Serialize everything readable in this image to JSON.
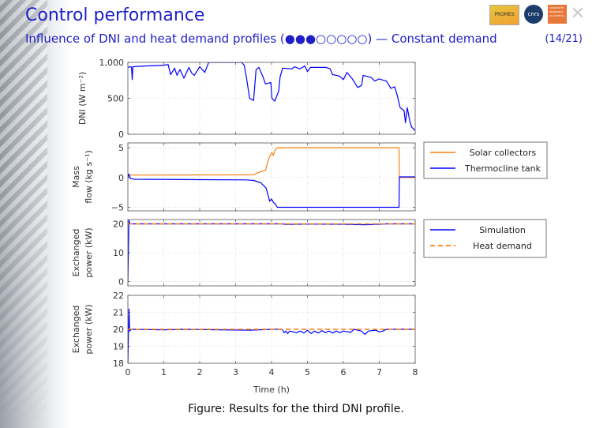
{
  "header": {
    "title": "Control performance",
    "subtitle": "Influence of DNI and heat demand profiles (●●●○○○○○) — Constant demand",
    "page": "(14/21)",
    "logos": [
      "PROMES",
      "cnrs",
      "UNIVERSITÉ PERPIGNAN VIA DOMITIA"
    ]
  },
  "caption": "Figure: Results for the third DNI profile.",
  "colors": {
    "blue": "#0000ff",
    "orange": "#ff7f0e",
    "grid": "#c8c8c8"
  },
  "chart_data": [
    {
      "type": "line",
      "ylabel": "DNI (W m⁻²)",
      "xlim": [
        0,
        8
      ],
      "ylim": [
        0,
        1000
      ],
      "yticks": [
        0,
        500,
        1000
      ],
      "ytick_labels": [
        "0",
        "500",
        "1,000"
      ],
      "grid": true,
      "series": [
        {
          "name": "DNI",
          "color": "blue",
          "dash": false,
          "points": [
            [
              0,
              930
            ],
            [
              0.05,
              940
            ],
            [
              0.1,
              935
            ],
            [
              0.12,
              760
            ],
            [
              0.14,
              940
            ],
            [
              0.5,
              950
            ],
            [
              1.0,
              960
            ],
            [
              1.12,
              970
            ],
            [
              1.19,
              830
            ],
            [
              1.3,
              920
            ],
            [
              1.37,
              820
            ],
            [
              1.45,
              900
            ],
            [
              1.56,
              780
            ],
            [
              1.7,
              930
            ],
            [
              1.78,
              850
            ],
            [
              1.85,
              820
            ],
            [
              2.0,
              940
            ],
            [
              2.14,
              860
            ],
            [
              2.25,
              1000
            ],
            [
              3.17,
              1000
            ],
            [
              3.24,
              960
            ],
            [
              3.3,
              800
            ],
            [
              3.39,
              500
            ],
            [
              3.5,
              470
            ],
            [
              3.57,
              900
            ],
            [
              3.65,
              930
            ],
            [
              3.76,
              800
            ],
            [
              3.83,
              700
            ],
            [
              3.98,
              720
            ],
            [
              4.01,
              500
            ],
            [
              4.09,
              460
            ],
            [
              4.2,
              600
            ],
            [
              4.24,
              800
            ],
            [
              4.31,
              920
            ],
            [
              4.57,
              910
            ],
            [
              4.64,
              940
            ],
            [
              4.79,
              910
            ],
            [
              4.93,
              950
            ],
            [
              5.0,
              870
            ],
            [
              5.08,
              930
            ],
            [
              5.52,
              930
            ],
            [
              5.63,
              910
            ],
            [
              5.7,
              830
            ],
            [
              5.89,
              810
            ],
            [
              6.0,
              760
            ],
            [
              6.1,
              860
            ],
            [
              6.25,
              770
            ],
            [
              6.4,
              650
            ],
            [
              6.51,
              680
            ],
            [
              6.55,
              820
            ],
            [
              6.77,
              790
            ],
            [
              6.88,
              740
            ],
            [
              6.99,
              770
            ],
            [
              7.2,
              740
            ],
            [
              7.32,
              640
            ],
            [
              7.43,
              660
            ],
            [
              7.5,
              540
            ],
            [
              7.58,
              370
            ],
            [
              7.69,
              330
            ],
            [
              7.73,
              160
            ],
            [
              7.78,
              370
            ],
            [
              7.85,
              180
            ],
            [
              7.9,
              100
            ],
            [
              8.0,
              50
            ]
          ]
        }
      ]
    },
    {
      "type": "line",
      "ylabel": [
        "Mass",
        "flow (kg s⁻¹)"
      ],
      "xlim": [
        0,
        8
      ],
      "ylim": [
        -5.6,
        5.8
      ],
      "yticks": [
        -5,
        0,
        5
      ],
      "ytick_labels": [
        "−5",
        "0",
        "5"
      ],
      "grid": true,
      "legend": {
        "position": "right",
        "entries": [
          "Solar collectors",
          "Thermocline tank"
        ]
      },
      "series": [
        {
          "name": "Solar collectors",
          "color": "orange",
          "dash": false,
          "points": [
            [
              0,
              0.4
            ],
            [
              3.5,
              0.45
            ],
            [
              3.61,
              0.8
            ],
            [
              3.83,
              1.2
            ],
            [
              3.94,
              3.5
            ],
            [
              3.98,
              3.8
            ],
            [
              4.01,
              4.2
            ],
            [
              4.05,
              3.7
            ],
            [
              4.1,
              4.6
            ],
            [
              4.16,
              5
            ],
            [
              7.55,
              5
            ],
            [
              7.56,
              0
            ],
            [
              8,
              0
            ]
          ]
        },
        {
          "name": "Thermocline tank",
          "color": "blue",
          "dash": false,
          "points": [
            [
              0,
              -0.2
            ],
            [
              0.02,
              0.6
            ],
            [
              0.08,
              -0.2
            ],
            [
              0.2,
              -0.3
            ],
            [
              3.3,
              -0.4
            ],
            [
              3.5,
              -0.5
            ],
            [
              3.7,
              -0.9
            ],
            [
              3.85,
              -1.8
            ],
            [
              3.95,
              -4
            ],
            [
              4.0,
              -3.6
            ],
            [
              4.05,
              -4.2
            ],
            [
              4.1,
              -4.4
            ],
            [
              4.16,
              -5
            ],
            [
              7.55,
              -5
            ],
            [
              7.56,
              0.1
            ],
            [
              8,
              0.1
            ]
          ]
        }
      ]
    },
    {
      "type": "line",
      "ylabel": [
        "Exchanged",
        "power (kW)"
      ],
      "xlim": [
        0,
        8
      ],
      "ylim": [
        -1.5,
        21.5
      ],
      "yticks": [
        0,
        10,
        20
      ],
      "ytick_labels": [
        "0",
        "10",
        "20"
      ],
      "grid": true,
      "legend": {
        "position": "right",
        "entries": [
          "Simulation",
          "Heat demand"
        ]
      },
      "series": [
        {
          "name": "Simulation",
          "color": "blue",
          "dash": false,
          "points": [
            [
              0,
              0
            ],
            [
              0.03,
              21.2
            ],
            [
              0.06,
              20
            ],
            [
              4.3,
              20
            ],
            [
              4.4,
              19.8
            ],
            [
              5,
              19.9
            ],
            [
              6,
              19.85
            ],
            [
              6.6,
              19.7
            ],
            [
              7.1,
              19.9
            ],
            [
              7.2,
              20
            ],
            [
              8,
              20
            ]
          ]
        },
        {
          "name": "Heat demand",
          "color": "orange",
          "dash": true,
          "points": [
            [
              0,
              20
            ],
            [
              8,
              20
            ]
          ]
        }
      ]
    },
    {
      "type": "line",
      "ylabel": [
        "Exchanged",
        "power (kW)"
      ],
      "xlabel": "Time (h)",
      "xlim": [
        0,
        8
      ],
      "ylim": [
        18,
        22
      ],
      "yticks": [
        18,
        19,
        20,
        21,
        22
      ],
      "ytick_labels": [
        "18",
        "19",
        "20",
        "21",
        "22"
      ],
      "xticks": [
        0,
        1,
        2,
        3,
        4,
        5,
        6,
        7,
        8
      ],
      "xtick_labels": [
        "0",
        "1",
        "2",
        "3",
        "4",
        "5",
        "6",
        "7",
        "8"
      ],
      "grid": true,
      "series": [
        {
          "name": "Simulation",
          "color": "blue",
          "dash": false,
          "points": [
            [
              0,
              18
            ],
            [
              0.03,
              21.2
            ],
            [
              0.05,
              19.9
            ],
            [
              0.1,
              20
            ],
            [
              1.0,
              19.97
            ],
            [
              1.6,
              20
            ],
            [
              2.5,
              19.97
            ],
            [
              3.4,
              19.95
            ],
            [
              4.0,
              20
            ],
            [
              4.3,
              20
            ],
            [
              4.35,
              19.8
            ],
            [
              4.4,
              19.9
            ],
            [
              4.45,
              19.75
            ],
            [
              4.5,
              19.9
            ],
            [
              4.6,
              19.85
            ],
            [
              4.7,
              19.8
            ],
            [
              4.8,
              19.9
            ],
            [
              4.9,
              19.78
            ],
            [
              5.0,
              19.95
            ],
            [
              5.1,
              19.75
            ],
            [
              5.2,
              19.9
            ],
            [
              5.3,
              19.78
            ],
            [
              5.4,
              19.92
            ],
            [
              5.5,
              19.8
            ],
            [
              5.6,
              19.9
            ],
            [
              5.7,
              19.78
            ],
            [
              5.8,
              19.9
            ],
            [
              5.9,
              19.8
            ],
            [
              6.0,
              19.9
            ],
            [
              6.2,
              19.82
            ],
            [
              6.3,
              20
            ],
            [
              6.5,
              19.9
            ],
            [
              6.6,
              19.7
            ],
            [
              6.7,
              19.9
            ],
            [
              6.9,
              19.95
            ],
            [
              7.0,
              19.85
            ],
            [
              7.1,
              19.9
            ],
            [
              7.2,
              20
            ],
            [
              8,
              20
            ]
          ]
        },
        {
          "name": "Heat demand",
          "color": "orange",
          "dash": true,
          "points": [
            [
              0,
              20
            ],
            [
              8,
              20
            ]
          ]
        }
      ]
    }
  ]
}
